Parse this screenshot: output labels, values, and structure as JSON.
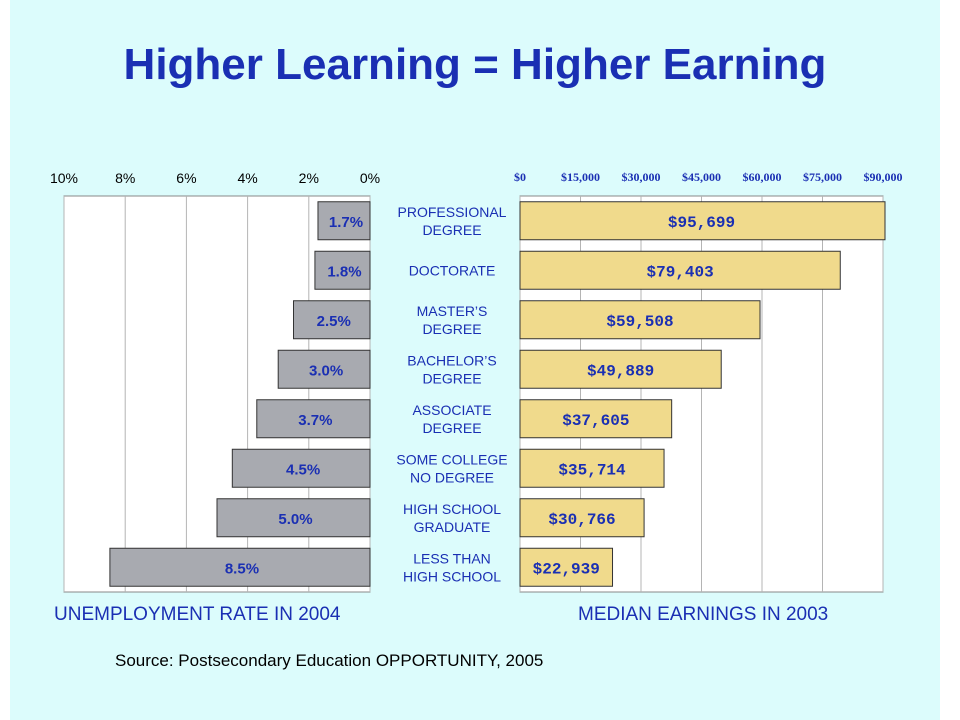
{
  "title": "Higher Learning = Higher Earning",
  "source": "Source: Postsecondary Education OPPORTUNITY, 2005",
  "chart_data": [
    {
      "type": "bar",
      "orientation": "horizontal",
      "direction": "right-to-left",
      "xlabel": "UNEMPLOYMENT RATE IN 2004",
      "xlim": [
        0,
        10
      ],
      "x_ticks": [
        "10%",
        "8%",
        "6%",
        "4%",
        "2%",
        "0%"
      ],
      "x_tick_values": [
        10,
        8,
        6,
        4,
        2,
        0
      ],
      "grid": true,
      "categories": [
        "PROFESSIONAL DEGREE",
        "DOCTORATE",
        "MASTER'S DEGREE",
        "BACHELOR'S DEGREE",
        "ASSOCIATE DEGREE",
        "SOME COLLEGE NO DEGREE",
        "HIGH SCHOOL GRADUATE",
        "LESS THAN HIGH SCHOOL"
      ],
      "values": [
        1.7,
        1.8,
        2.5,
        3.0,
        3.7,
        4.5,
        5.0,
        8.5
      ],
      "data_labels": [
        "1.7%",
        "1.8%",
        "2.5%",
        "3.0%",
        "3.7%",
        "4.5%",
        "5.0%",
        "8.5%"
      ],
      "bar_color": "#a8aab0"
    },
    {
      "type": "bar",
      "orientation": "horizontal",
      "xlabel": "MEDIAN EARNINGS IN 2003",
      "xlim": [
        0,
        90000
      ],
      "x_ticks": [
        "$0",
        "$15,000",
        "$30,000",
        "$45,000",
        "$60,000",
        "$75,000",
        "$90,000"
      ],
      "x_tick_values": [
        0,
        15000,
        30000,
        45000,
        60000,
        75000,
        90000
      ],
      "grid": true,
      "categories": [
        "PROFESSIONAL DEGREE",
        "DOCTORATE",
        "MASTER'S DEGREE",
        "BACHELOR'S DEGREE",
        "ASSOCIATE DEGREE",
        "SOME COLLEGE NO DEGREE",
        "HIGH SCHOOL GRADUATE",
        "LESS THAN HIGH SCHOOL"
      ],
      "category_labels": [
        [
          "PROFESSIONAL",
          "DEGREE"
        ],
        [
          "DOCTORATE"
        ],
        [
          "MASTER’S",
          "DEGREE"
        ],
        [
          "BACHELOR’S",
          "DEGREE"
        ],
        [
          "ASSOCIATE",
          "DEGREE"
        ],
        [
          "SOME COLLEGE",
          "NO DEGREE"
        ],
        [
          "HIGH SCHOOL",
          "GRADUATE"
        ],
        [
          "LESS THAN",
          "HIGH SCHOOL"
        ]
      ],
      "values": [
        95699,
        79403,
        59508,
        49889,
        37605,
        35714,
        30766,
        22939
      ],
      "data_labels": [
        "$95,699",
        "$79,403",
        "$59,508",
        "$49,889",
        "$37,605",
        "$35,714",
        "$30,766",
        "$22,939"
      ],
      "bar_color": "#f0da8c"
    }
  ],
  "colors": {
    "background": "#dcfcfc",
    "title": "#1a2fb3",
    "bar_outline": "#333333",
    "gray_bar": "#a8aab0",
    "gold_bar": "#f0da8c",
    "grid": "#b4b4b4"
  }
}
